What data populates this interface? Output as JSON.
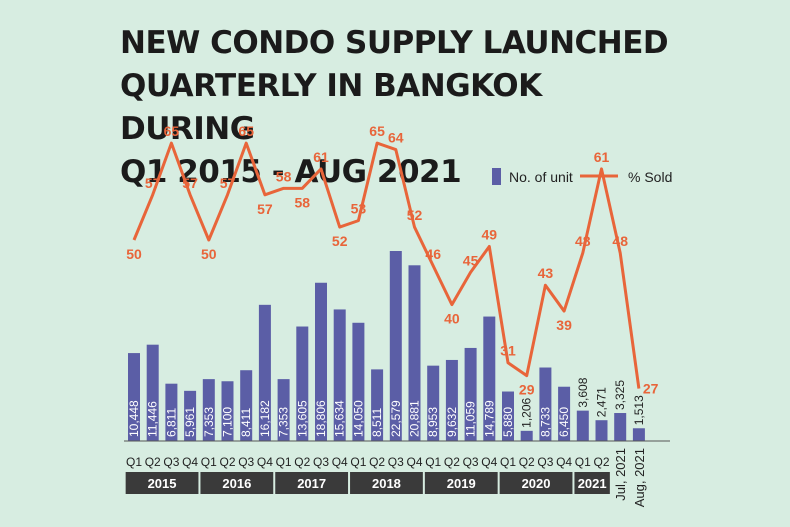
{
  "title_lines": [
    "NEW CONDO SUPPLY LAUNCHED",
    "QUARTERLY IN BANGKOK DURING",
    "Q1 2015 - AUG 2021"
  ],
  "colors": {
    "bar": "#5b5ea6",
    "line": "#e8653a",
    "year_band": "#3a3a3a",
    "background": "#d7ede1"
  },
  "chart_data": {
    "type": "bar",
    "title": "NEW CONDO SUPPLY LAUNCHED QUARTERLY IN BANGKOK DURING Q1 2015 - AUG 2021",
    "legend": {
      "placement": "top-right",
      "entries": [
        "No. of unit",
        "% Sold"
      ]
    },
    "categories": [
      "Q1",
      "Q2",
      "Q3",
      "Q4",
      "Q1",
      "Q2",
      "Q3",
      "Q4",
      "Q1",
      "Q2",
      "Q3",
      "Q4",
      "Q1",
      "Q2",
      "Q3",
      "Q4",
      "Q1",
      "Q2",
      "Q3",
      "Q4",
      "Q1",
      "Q2",
      "Q3",
      "Q4",
      "Q1",
      "Q2",
      "Jul, 2021",
      "Aug, 2021"
    ],
    "groups": [
      {
        "label": "2015",
        "span": 4
      },
      {
        "label": "2016",
        "span": 4
      },
      {
        "label": "2017",
        "span": 4
      },
      {
        "label": "2018",
        "span": 4
      },
      {
        "label": "2019",
        "span": 4
      },
      {
        "label": "2020",
        "span": 4
      },
      {
        "label": "2021",
        "span": 2
      }
    ],
    "series": [
      {
        "name": "No. of unit",
        "kind": "bar",
        "values": [
          10448,
          11446,
          6811,
          5961,
          7353,
          7100,
          8411,
          16182,
          7353,
          13605,
          18806,
          15634,
          14050,
          8511,
          22579,
          20881,
          8953,
          9632,
          11059,
          14789,
          5880,
          1206,
          8733,
          6450,
          3608,
          2471,
          3325,
          1513
        ],
        "labels": [
          "10,448",
          "11,446",
          "6,811",
          "5,961",
          "7,353",
          "7,100",
          "8,411",
          "16,182",
          "7,353",
          "13,605",
          "18,806",
          "15,634",
          "14,050",
          "8,511",
          "22,579",
          "20,881",
          "8,953",
          "9,632",
          "11,059",
          "14,789",
          "5,880",
          "1,206",
          "8,733",
          "6,450",
          "3,608",
          "2,471",
          "3,325",
          "1,513"
        ]
      },
      {
        "name": "% Sold",
        "kind": "line",
        "values": [
          50,
          57,
          65,
          57,
          50,
          57,
          65,
          57,
          58,
          58,
          61,
          52,
          53,
          65,
          64,
          52,
          46,
          40,
          45,
          49,
          31,
          29,
          43,
          39,
          48,
          61,
          48,
          27
        ]
      }
    ],
    "grid": false
  }
}
